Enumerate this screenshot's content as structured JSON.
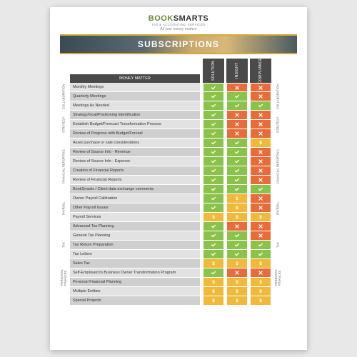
{
  "logo": {
    "book": "BOOK",
    "smarts": "SMARTS",
    "sub": "TAX & ACCOUNTING SERVICES",
    "tag": "All your money matters"
  },
  "banner": {
    "title": "SUBSCRIPTIONS"
  },
  "headers": {
    "money": "MONEY MATTER",
    "plans": [
      "SOLUTION",
      "INSIGHT",
      "COMPLIANCE"
    ]
  },
  "colors": {
    "yes": "#8bc34a",
    "dollar": "#f0b93a",
    "no": "#e86c3a",
    "header_bg": "#4a4a4a"
  },
  "categories": [
    {
      "label": "COLLABORATION",
      "start": 0,
      "span": 3,
      "side": "both"
    },
    {
      "label": "STRATEGY",
      "start": 3,
      "span": 3,
      "side": "both"
    },
    {
      "label": "FINANCIAL REPORTING",
      "start": 6,
      "span": 6,
      "side": "both"
    },
    {
      "label": "PAYROLL",
      "start": 12,
      "span": 3,
      "side": "both"
    },
    {
      "label": "TAX",
      "start": 15,
      "span": 5,
      "side": "both"
    },
    {
      "label": "PERSONAL FINANCES",
      "start": 20,
      "span": 2,
      "side": "both"
    },
    {
      "label": "",
      "start": 22,
      "span": 2,
      "side": "none"
    }
  ],
  "rows": [
    {
      "label": "Monthly Meetings",
      "v": [
        "yes",
        "no",
        "no"
      ]
    },
    {
      "label": "Quarterly Meetings",
      "v": [
        "yes",
        "yes",
        "no"
      ]
    },
    {
      "label": "Meetings As Needed",
      "v": [
        "yes",
        "yes",
        "yes"
      ]
    },
    {
      "label": "Strategy/Goal/Positioning Identification",
      "v": [
        "yes",
        "no",
        "no"
      ]
    },
    {
      "label": "Establish Budget/Forecast Transformation Process",
      "v": [
        "yes",
        "no",
        "no"
      ]
    },
    {
      "label": "Review of Progress with Budget/Forcast",
      "v": [
        "yes",
        "no",
        "no"
      ]
    },
    {
      "label": "Asset purchase or sale considerations",
      "v": [
        "yes",
        "yes",
        "dollar"
      ]
    },
    {
      "label": "Review of Source Info - Revenue",
      "v": [
        "yes",
        "yes",
        "no"
      ]
    },
    {
      "label": "Review of Source Info - Expense",
      "v": [
        "yes",
        "yes",
        "no"
      ]
    },
    {
      "label": "Creation of Financial Reports",
      "v": [
        "yes",
        "yes",
        "no"
      ]
    },
    {
      "label": "Review of Financial Reports",
      "v": [
        "yes",
        "yes",
        "no"
      ]
    },
    {
      "label": "BookSmarts / Client data exchange comments",
      "v": [
        "yes",
        "yes",
        "yes"
      ]
    },
    {
      "label": "Owner Payroll Calibration",
      "v": [
        "yes",
        "dollar",
        "no"
      ]
    },
    {
      "label": "Other Payroll Issues",
      "v": [
        "yes",
        "dollar",
        "no"
      ]
    },
    {
      "label": "Payroll Services",
      "v": [
        "dollar",
        "dollar",
        "dollar"
      ]
    },
    {
      "label": "Advanced Tax Planning",
      "v": [
        "yes",
        "no",
        "no"
      ]
    },
    {
      "label": "General Tax Planning",
      "v": [
        "yes",
        "yes",
        "no"
      ]
    },
    {
      "label": "Tax Return Preparation",
      "v": [
        "yes",
        "yes",
        "yes"
      ]
    },
    {
      "label": "Tax Letters",
      "v": [
        "yes",
        "yes",
        "yes"
      ]
    },
    {
      "label": "Sales Tax",
      "v": [
        "dollar",
        "dollar",
        "dollar"
      ]
    },
    {
      "label": "Self-Employed to Business Owner Transformation Program",
      "v": [
        "yes",
        "no",
        "no"
      ]
    },
    {
      "label": "Personal Financial Planning",
      "v": [
        "dollar",
        "dollar",
        "dollar"
      ]
    },
    {
      "label": "Multiple Entities",
      "v": [
        "dollar",
        "dollar",
        "dollar"
      ]
    },
    {
      "label": "Special Projects",
      "v": [
        "dollar",
        "dollar",
        "dollar"
      ]
    }
  ]
}
